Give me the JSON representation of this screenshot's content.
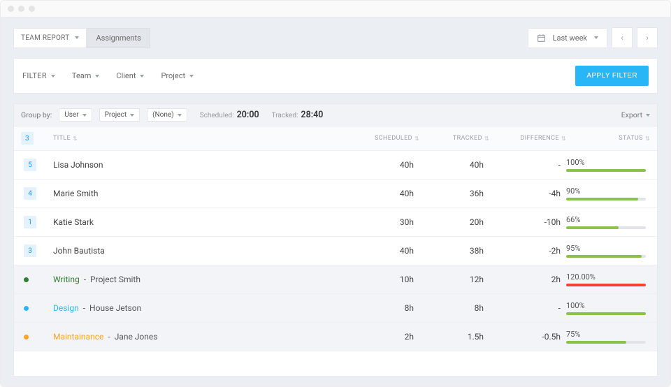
{
  "colors": {
    "page_bg": "#ebeef2",
    "panel_bg": "#ffffff",
    "border": "#e6e9ed",
    "text": "#4a4a4a",
    "muted": "#9aa0a8",
    "accent": "#29b6f6",
    "badge_bg": "#e3f2fd",
    "badge_fg": "#2196f3",
    "bar_track": "#e1e5ea",
    "bar_green": "#8bc34a",
    "bar_red": "#f44336"
  },
  "topbar": {
    "team_report_label": "TEAM REPORT",
    "assignments_label": "Assignments",
    "date_range_label": "Last week"
  },
  "filterbar": {
    "filter_label": "FILTER",
    "team_label": "Team",
    "client_label": "Client",
    "project_label": "Project",
    "apply_label": "APPLY FILTER"
  },
  "panel": {
    "group_by_label": "Group by:",
    "group1": "User",
    "group2": "Project",
    "group3": "(None)",
    "scheduled_label": "Scheduled:",
    "scheduled_value": "20:00",
    "tracked_label": "Tracked:",
    "tracked_value": "28:40",
    "export_label": "Export"
  },
  "table": {
    "header_badge": "3",
    "col_title": "TITLE",
    "col_scheduled": "SCHEDULED",
    "col_tracked": "TRACKED",
    "col_difference": "DIFFERENCE",
    "col_status": "STATUS",
    "rows": [
      {
        "type": "user",
        "badge": "5",
        "title": "Lisa Johnson",
        "scheduled": "40h",
        "tracked": "40h",
        "difference": "-",
        "status_label": "100%",
        "status_pct": 100,
        "status_color": "#8bc34a"
      },
      {
        "type": "user",
        "badge": "4",
        "title": "Marie Smith",
        "scheduled": "40h",
        "tracked": "36h",
        "difference": "-4h",
        "status_label": "90%",
        "status_pct": 90,
        "status_color": "#8bc34a"
      },
      {
        "type": "user",
        "badge": "1",
        "title": "Katie Stark",
        "scheduled": "30h",
        "tracked": "20h",
        "difference": "-10h",
        "status_label": "66%",
        "status_pct": 66,
        "status_color": "#8bc34a"
      },
      {
        "type": "user",
        "badge": "3",
        "title": "John Bautista",
        "scheduled": "40h",
        "tracked": "38h",
        "difference": "-2h",
        "status_label": "95%",
        "status_pct": 95,
        "status_color": "#8bc34a"
      },
      {
        "type": "project",
        "bullet_color": "#2e7d32",
        "proj_name_color": "#2e7d32",
        "proj_name": "Writing",
        "proj_rest": "Project Smith",
        "scheduled": "10h",
        "tracked": "12h",
        "difference": "2h",
        "status_label": "120.00%",
        "status_pct": 100,
        "status_color": "#f44336"
      },
      {
        "type": "project",
        "bullet_color": "#29b6f6",
        "proj_name_color": "#29b6f6",
        "proj_name": "Design",
        "proj_rest": "House Jetson",
        "scheduled": "8h",
        "tracked": "8h",
        "difference": "-",
        "status_label": "100%",
        "status_pct": 100,
        "status_color": "#8bc34a"
      },
      {
        "type": "project",
        "bullet_color": "#f5a623",
        "proj_name_color": "#f5a623",
        "proj_name": "Maintainance",
        "proj_rest": "Jane Jones",
        "scheduled": "2h",
        "tracked": "1.5h",
        "difference": "-0.5h",
        "status_label": "75%",
        "status_pct": 75,
        "status_color": "#8bc34a"
      }
    ]
  }
}
